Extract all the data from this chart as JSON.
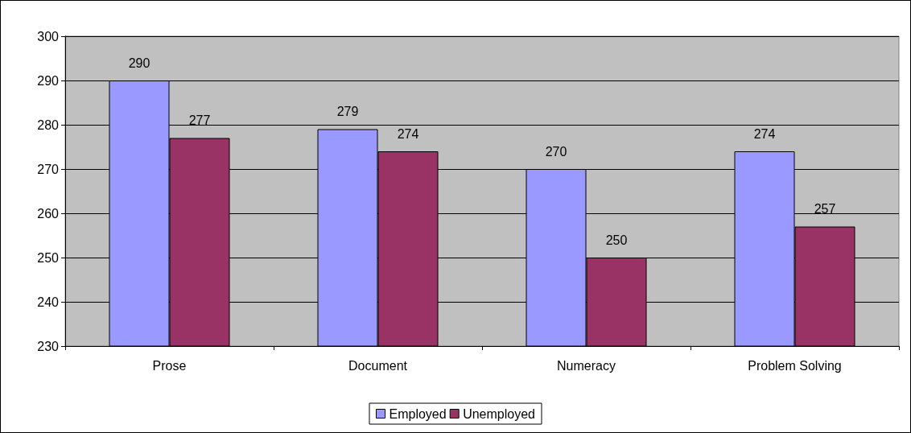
{
  "chart_data": {
    "type": "bar",
    "categories": [
      "Prose",
      "Document",
      "Numeracy",
      "Problem Solving"
    ],
    "series": [
      {
        "name": "Employed",
        "color": "#9999ff",
        "values": [
          290,
          279,
          270,
          274
        ]
      },
      {
        "name": "Unemployed",
        "color": "#993366",
        "values": [
          277,
          274,
          250,
          257
        ]
      }
    ],
    "ylim": [
      230,
      300
    ],
    "yticks": [
      230,
      240,
      250,
      260,
      270,
      280,
      290,
      300
    ],
    "grid": "y",
    "legend": "bottom",
    "data_labels": true
  }
}
